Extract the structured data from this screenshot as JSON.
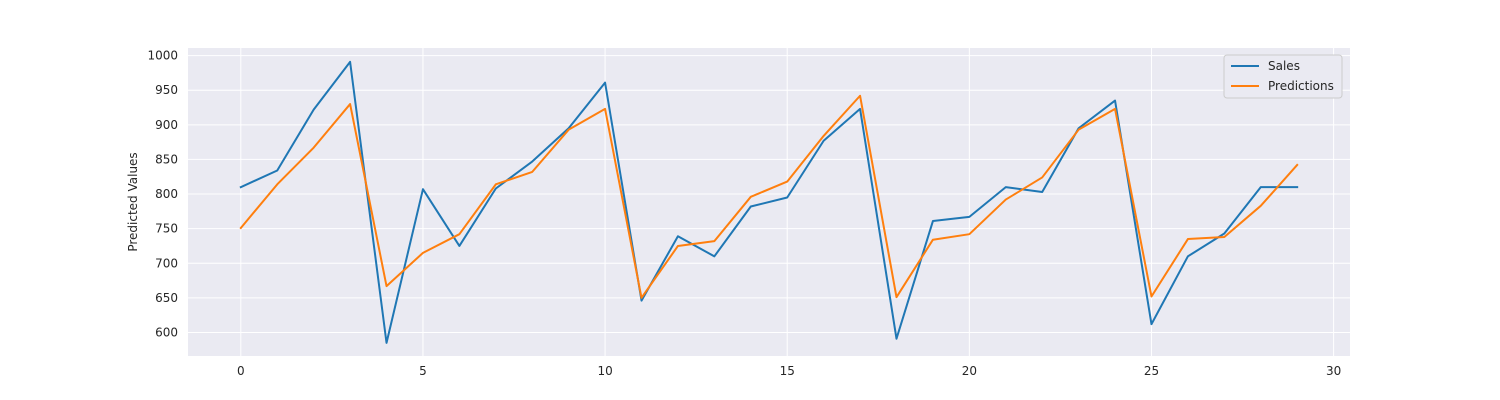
{
  "chart_data": {
    "type": "line",
    "title": "",
    "xlabel": "",
    "ylabel": "Predicted Values",
    "xlim": [
      -1.45,
      30.45
    ],
    "ylim": [
      566,
      1011
    ],
    "xticks": [
      0,
      5,
      10,
      15,
      20,
      25,
      30
    ],
    "yticks": [
      600,
      650,
      700,
      750,
      800,
      850,
      900,
      950,
      1000
    ],
    "grid": true,
    "legend_position": "top-right",
    "background": "#eaeaf2",
    "x": [
      0,
      1,
      2,
      3,
      4,
      5,
      6,
      7,
      8,
      9,
      10,
      11,
      12,
      13,
      14,
      15,
      16,
      17,
      18,
      19,
      20,
      21,
      22,
      23,
      24,
      25,
      26,
      27,
      28,
      29
    ],
    "series": [
      {
        "name": "Sales",
        "color": "#1f77b4",
        "values": [
          810,
          834,
          922,
          991,
          585,
          807,
          725,
          808,
          847,
          895,
          961,
          646,
          739,
          710,
          782,
          795,
          877,
          923,
          591,
          761,
          767,
          810,
          803,
          895,
          935,
          612,
          710,
          743,
          810,
          810
        ]
      },
      {
        "name": "Predictions",
        "color": "#ff7f0e",
        "values": [
          751,
          814,
          867,
          930,
          667,
          715,
          742,
          814,
          832,
          893,
          923,
          650,
          725,
          732,
          796,
          818,
          884,
          942,
          651,
          734,
          742,
          792,
          824,
          893,
          923,
          652,
          735,
          738,
          783,
          842
        ]
      }
    ]
  }
}
